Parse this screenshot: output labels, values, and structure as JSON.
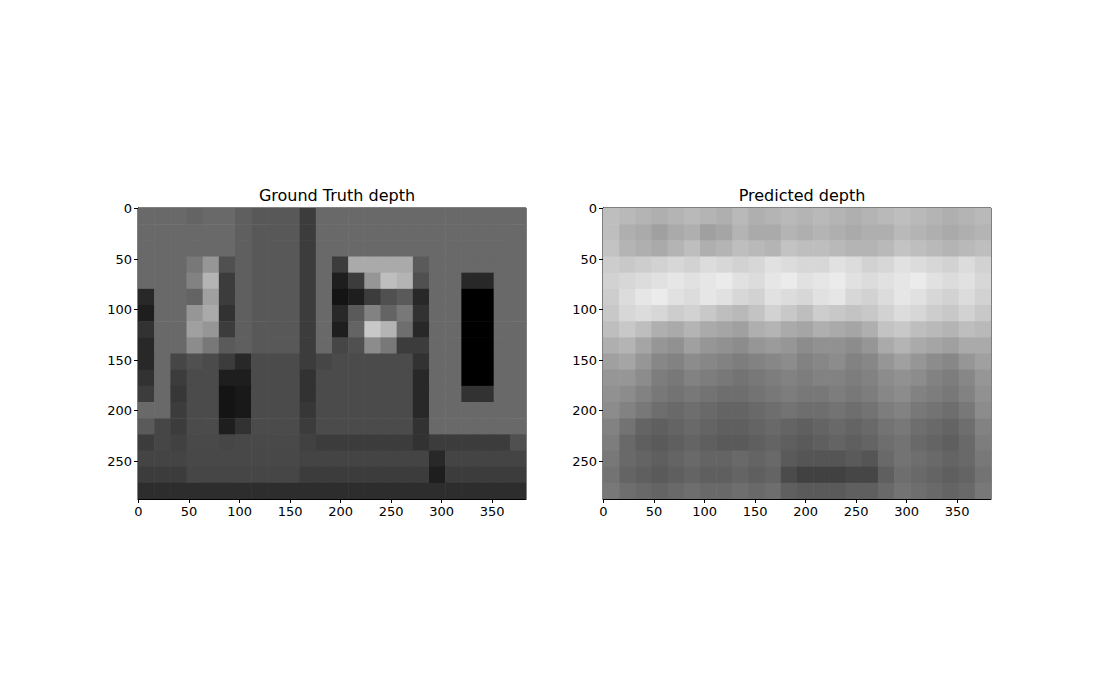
{
  "chart_data": [
    {
      "type": "heatmap",
      "title": "Ground Truth depth",
      "color": "gray",
      "color_range": [
        0,
        255
      ],
      "xlim": [
        -0.5,
        383.5
      ],
      "ylim": [
        287.5,
        -0.5
      ],
      "xticks": [
        0,
        50,
        100,
        150,
        200,
        250,
        300,
        350
      ],
      "yticks": [
        0,
        50,
        100,
        150,
        200,
        250
      ],
      "x": [
        7.5,
        23.5,
        39.5,
        55.5,
        71.5,
        87.5,
        103.5,
        119.5,
        135.5,
        151.5,
        167.5,
        183.5,
        199.5,
        215.5,
        231.5,
        247.5,
        263.5,
        279.5,
        295.5,
        311.5,
        327.5,
        343.5,
        359.5,
        375.5
      ],
      "y": [
        7.5,
        23.5,
        39.5,
        55.5,
        71.5,
        87.5,
        103.5,
        119.5,
        135.5,
        151.5,
        167.5,
        183.5,
        199.5,
        215.5,
        231.5,
        247.5,
        263.5,
        279.5
      ],
      "cells": [
        [
          105,
          105,
          105,
          100,
          105,
          105,
          95,
          88,
          88,
          88,
          60,
          105,
          105,
          105,
          105,
          105,
          105,
          105,
          105,
          105,
          105,
          105,
          105,
          105
        ],
        [
          105,
          105,
          105,
          105,
          105,
          105,
          95,
          88,
          88,
          88,
          60,
          105,
          105,
          105,
          105,
          105,
          105,
          105,
          105,
          105,
          105,
          105,
          105,
          105
        ],
        [
          105,
          105,
          105,
          105,
          105,
          105,
          95,
          88,
          88,
          88,
          60,
          105,
          105,
          105,
          105,
          105,
          105,
          105,
          105,
          105,
          105,
          105,
          105,
          105
        ],
        [
          105,
          105,
          105,
          120,
          150,
          80,
          95,
          88,
          88,
          88,
          60,
          105,
          60,
          170,
          170,
          170,
          170,
          90,
          105,
          105,
          105,
          105,
          105,
          105
        ],
        [
          105,
          105,
          105,
          130,
          180,
          60,
          95,
          88,
          88,
          88,
          60,
          105,
          30,
          60,
          150,
          190,
          180,
          80,
          105,
          105,
          40,
          40,
          105,
          105
        ],
        [
          40,
          105,
          105,
          100,
          160,
          60,
          95,
          88,
          88,
          88,
          60,
          105,
          20,
          30,
          60,
          80,
          90,
          40,
          105,
          105,
          0,
          0,
          105,
          105
        ],
        [
          30,
          105,
          105,
          150,
          170,
          50,
          95,
          88,
          88,
          88,
          60,
          105,
          40,
          90,
          130,
          100,
          120,
          50,
          105,
          105,
          0,
          0,
          105,
          105
        ],
        [
          50,
          105,
          105,
          160,
          150,
          60,
          95,
          88,
          88,
          88,
          60,
          105,
          30,
          100,
          200,
          180,
          110,
          40,
          105,
          105,
          0,
          0,
          105,
          105
        ],
        [
          40,
          105,
          105,
          140,
          120,
          90,
          95,
          88,
          88,
          88,
          60,
          105,
          70,
          80,
          140,
          120,
          60,
          60,
          105,
          105,
          0,
          0,
          105,
          105
        ],
        [
          40,
          105,
          70,
          80,
          75,
          60,
          40,
          75,
          75,
          75,
          60,
          70,
          75,
          75,
          75,
          75,
          75,
          50,
          105,
          105,
          0,
          0,
          105,
          105
        ],
        [
          50,
          105,
          60,
          75,
          75,
          30,
          30,
          75,
          75,
          75,
          50,
          75,
          75,
          75,
          75,
          75,
          75,
          40,
          105,
          105,
          0,
          0,
          105,
          105
        ],
        [
          60,
          105,
          55,
          75,
          75,
          20,
          25,
          75,
          75,
          75,
          50,
          75,
          75,
          75,
          75,
          75,
          75,
          40,
          105,
          105,
          50,
          50,
          105,
          105
        ],
        [
          105,
          105,
          60,
          75,
          75,
          20,
          25,
          75,
          75,
          75,
          55,
          75,
          75,
          75,
          75,
          75,
          75,
          40,
          105,
          105,
          105,
          105,
          105,
          105
        ],
        [
          90,
          70,
          60,
          75,
          75,
          30,
          50,
          75,
          75,
          75,
          60,
          75,
          75,
          75,
          75,
          75,
          75,
          50,
          105,
          105,
          105,
          105,
          105,
          105
        ],
        [
          60,
          70,
          65,
          73,
          73,
          70,
          72,
          73,
          73,
          73,
          65,
          60,
          60,
          60,
          60,
          60,
          60,
          50,
          60,
          60,
          60,
          60,
          60,
          80
        ],
        [
          68,
          68,
          68,
          72,
          72,
          72,
          72,
          72,
          72,
          72,
          68,
          68,
          68,
          68,
          68,
          68,
          68,
          68,
          40,
          68,
          68,
          68,
          68,
          68
        ],
        [
          60,
          60,
          60,
          70,
          70,
          70,
          70,
          70,
          70,
          70,
          60,
          60,
          60,
          60,
          60,
          60,
          60,
          60,
          30,
          60,
          60,
          60,
          60,
          60
        ],
        [
          45,
          45,
          45,
          45,
          45,
          45,
          45,
          45,
          45,
          45,
          45,
          45,
          45,
          45,
          45,
          45,
          45,
          45,
          45,
          45,
          45,
          45,
          45,
          45
        ]
      ]
    },
    {
      "type": "heatmap",
      "title": "Predicted depth",
      "color": "gray",
      "color_range": [
        0,
        255
      ],
      "xlim": [
        -0.5,
        383.5
      ],
      "ylim": [
        287.5,
        -0.5
      ],
      "xticks": [
        0,
        50,
        100,
        150,
        200,
        250,
        300,
        350
      ],
      "yticks": [
        0,
        50,
        100,
        150,
        200,
        250
      ],
      "x": [
        7.5,
        23.5,
        39.5,
        55.5,
        71.5,
        87.5,
        103.5,
        119.5,
        135.5,
        151.5,
        167.5,
        183.5,
        199.5,
        215.5,
        231.5,
        247.5,
        263.5,
        279.5,
        295.5,
        311.5,
        327.5,
        343.5,
        359.5,
        375.5
      ],
      "y": [
        7.5,
        23.5,
        39.5,
        55.5,
        71.5,
        87.5,
        103.5,
        119.5,
        135.5,
        151.5,
        167.5,
        183.5,
        199.5,
        215.5,
        231.5,
        247.5,
        263.5,
        279.5
      ],
      "cells": [
        [
          190,
          185,
          180,
          175,
          180,
          185,
          180,
          175,
          185,
          175,
          180,
          185,
          180,
          185,
          180,
          175,
          180,
          185,
          190,
          185,
          180,
          175,
          180,
          185
        ],
        [
          190,
          175,
          170,
          160,
          170,
          175,
          160,
          165,
          180,
          170,
          170,
          180,
          175,
          180,
          175,
          170,
          175,
          175,
          185,
          180,
          175,
          170,
          175,
          180
        ],
        [
          195,
          180,
          175,
          170,
          180,
          190,
          175,
          180,
          190,
          185,
          180,
          195,
          190,
          190,
          185,
          180,
          180,
          185,
          195,
          190,
          185,
          180,
          185,
          190
        ],
        [
          205,
          200,
          205,
          210,
          215,
          210,
          220,
          215,
          210,
          215,
          225,
          220,
          215,
          215,
          225,
          220,
          210,
          215,
          225,
          220,
          215,
          210,
          220,
          210
        ],
        [
          210,
          215,
          220,
          225,
          230,
          225,
          230,
          235,
          225,
          220,
          230,
          235,
          225,
          230,
          235,
          225,
          220,
          225,
          230,
          235,
          225,
          220,
          225,
          215
        ],
        [
          205,
          220,
          230,
          235,
          225,
          220,
          230,
          225,
          215,
          210,
          225,
          220,
          215,
          225,
          230,
          215,
          210,
          220,
          230,
          225,
          215,
          210,
          220,
          210
        ],
        [
          200,
          215,
          220,
          215,
          205,
          210,
          200,
          190,
          185,
          195,
          210,
          200,
          190,
          205,
          200,
          195,
          200,
          210,
          220,
          215,
          205,
          200,
          210,
          200
        ],
        [
          190,
          200,
          190,
          175,
          170,
          180,
          170,
          165,
          160,
          175,
          180,
          170,
          165,
          175,
          170,
          165,
          175,
          195,
          200,
          190,
          185,
          180,
          190,
          185
        ],
        [
          175,
          180,
          165,
          150,
          145,
          160,
          150,
          145,
          140,
          150,
          155,
          150,
          140,
          145,
          145,
          140,
          150,
          170,
          180,
          170,
          165,
          160,
          170,
          170
        ],
        [
          160,
          165,
          150,
          135,
          130,
          140,
          135,
          130,
          125,
          130,
          135,
          140,
          130,
          135,
          140,
          130,
          135,
          150,
          160,
          150,
          140,
          135,
          150,
          160
        ],
        [
          150,
          150,
          140,
          125,
          120,
          130,
          125,
          120,
          115,
          120,
          125,
          130,
          125,
          130,
          130,
          125,
          130,
          140,
          145,
          140,
          130,
          125,
          135,
          150
        ],
        [
          145,
          140,
          130,
          120,
          115,
          120,
          115,
          110,
          110,
          115,
          120,
          125,
          120,
          120,
          125,
          120,
          125,
          135,
          140,
          130,
          125,
          120,
          130,
          145
        ],
        [
          140,
          130,
          120,
          110,
          105,
          110,
          105,
          100,
          100,
          105,
          110,
          115,
          110,
          110,
          115,
          110,
          115,
          125,
          130,
          120,
          115,
          110,
          120,
          140
        ],
        [
          130,
          115,
          100,
          95,
          100,
          105,
          100,
          95,
          95,
          100,
          105,
          100,
          95,
          100,
          105,
          100,
          105,
          115,
          120,
          110,
          105,
          100,
          110,
          130
        ],
        [
          125,
          105,
          95,
          90,
          95,
          100,
          95,
          90,
          90,
          95,
          100,
          95,
          90,
          95,
          100,
          95,
          100,
          110,
          115,
          105,
          100,
          95,
          105,
          125
        ],
        [
          120,
          105,
          100,
          95,
          100,
          105,
          100,
          100,
          105,
          100,
          105,
          90,
          85,
          85,
          85,
          90,
          85,
          105,
          115,
          110,
          105,
          100,
          105,
          120
        ],
        [
          115,
          100,
          95,
          90,
          95,
          100,
          95,
          95,
          100,
          95,
          100,
          75,
          65,
          65,
          65,
          70,
          70,
          95,
          110,
          105,
          100,
          95,
          100,
          115
        ],
        [
          120,
          110,
          105,
          100,
          105,
          110,
          105,
          105,
          110,
          105,
          110,
          95,
          90,
          90,
          90,
          95,
          95,
          105,
          115,
          110,
          105,
          100,
          105,
          120
        ]
      ]
    }
  ]
}
